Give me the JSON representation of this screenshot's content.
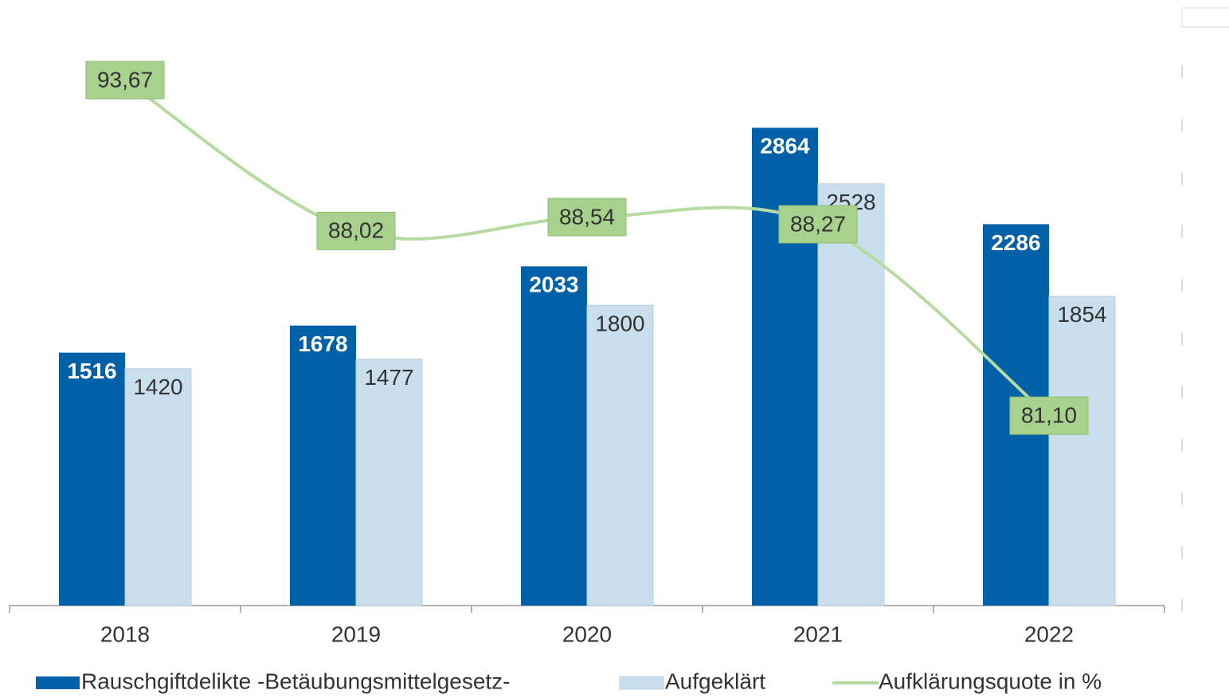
{
  "chart_data": {
    "type": "bar_line",
    "categories": [
      "2018",
      "2019",
      "2020",
      "2021",
      "2022"
    ],
    "series": [
      {
        "name": "Rauschgiftdelikte -Betäubungsmittelgesetz-",
        "color": "#0060a8",
        "values": [
          1516,
          1678,
          2033,
          2864,
          2286
        ]
      },
      {
        "name": "Aufgeklärt",
        "color": "#c9dfee",
        "values": [
          1420,
          1477,
          1800,
          2528,
          1854
        ]
      },
      {
        "name": "Aufklärungsquote in %",
        "color": "#b5dba0",
        "axis": "y2",
        "values": [
          93.67,
          88.02,
          88.54,
          88.27,
          81.1
        ],
        "value_labels": [
          "93,67",
          "88,02",
          "88,54",
          "88,27",
          "81,10"
        ]
      }
    ],
    "ylim": [
      0,
      3200
    ],
    "y2lim": [
      74,
      94
    ],
    "y2ticks": [
      74,
      76,
      78,
      80,
      82,
      84,
      86,
      88,
      90,
      92,
      94
    ]
  }
}
